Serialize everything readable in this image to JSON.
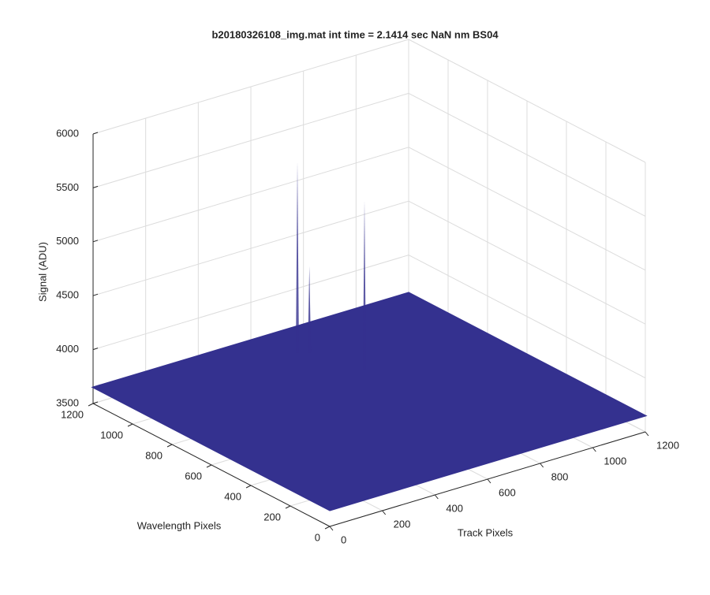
{
  "chart_data": {
    "type": "surface3d",
    "title": "b20180326108_img.mat int time = 2.1414 sec  NaN nm BS04",
    "xlabel": "Track Pixels",
    "ylabel": "Wavelength Pixels",
    "zlabel": "Signal (ADU)",
    "xlim": [
      0,
      1200
    ],
    "ylim": [
      0,
      1200
    ],
    "zlim": [
      3500,
      6000
    ],
    "xticks": [
      0,
      200,
      400,
      600,
      800,
      1000,
      1200
    ],
    "yticks": [
      0,
      200,
      400,
      600,
      800,
      1000,
      1200
    ],
    "zticks": [
      3500,
      4000,
      4500,
      5000,
      5500,
      6000
    ],
    "grid": true,
    "color": "#34318f",
    "surface_level": 3650,
    "spikes": {
      "x": [
        654,
        683,
        735
      ],
      "y": [
        1036,
        1014,
        804
      ],
      "z": [
        5420,
        4450,
        5220
      ]
    }
  }
}
